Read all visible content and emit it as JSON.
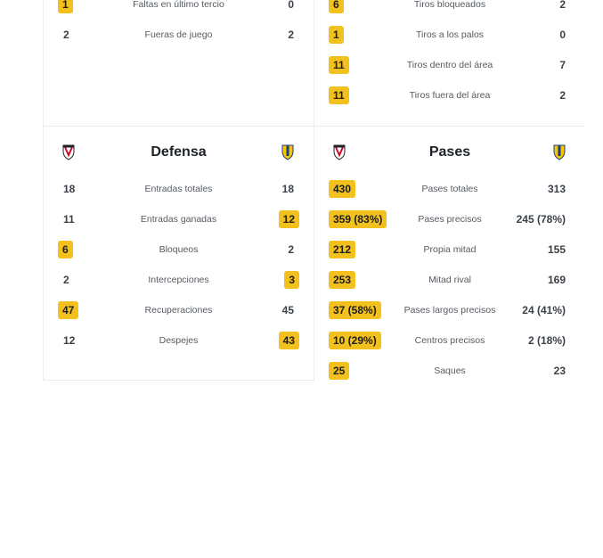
{
  "top_left": {
    "rows": [
      {
        "home": "1",
        "label": "Faltas en último tercio",
        "away": "0",
        "hl": "home"
      },
      {
        "home": "2",
        "label": "Fueras de juego",
        "away": "2",
        "hl": "none"
      }
    ]
  },
  "top_right": {
    "rows": [
      {
        "home": "6",
        "label": "Tiros bloqueados",
        "away": "2",
        "hl": "home"
      },
      {
        "home": "1",
        "label": "Tiros a los palos",
        "away": "0",
        "hl": "home"
      },
      {
        "home": "11",
        "label": "Tiros dentro del área",
        "away": "7",
        "hl": "home"
      },
      {
        "home": "11",
        "label": "Tiros fuera del área",
        "away": "2",
        "hl": "home"
      }
    ]
  },
  "defensa": {
    "title": "Defensa",
    "home_crest_icon": "mirandes-crest-icon",
    "away_crest_icon": "cadiz-crest-icon",
    "rows": [
      {
        "home": "18",
        "label": "Entradas totales",
        "away": "18",
        "hl": "none"
      },
      {
        "home": "11",
        "label": "Entradas ganadas",
        "away": "12",
        "hl": "away"
      },
      {
        "home": "6",
        "label": "Bloqueos",
        "away": "2",
        "hl": "home"
      },
      {
        "home": "2",
        "label": "Intercepciones",
        "away": "3",
        "hl": "away"
      },
      {
        "home": "47",
        "label": "Recuperaciones",
        "away": "45",
        "hl": "home"
      },
      {
        "home": "12",
        "label": "Despejes",
        "away": "43",
        "hl": "away"
      }
    ]
  },
  "pases": {
    "title": "Pases",
    "home_crest_icon": "mirandes-crest-icon",
    "away_crest_icon": "cadiz-crest-icon",
    "rows": [
      {
        "home": "430",
        "label": "Pases totales",
        "away": "313",
        "hl": "home"
      },
      {
        "home": "359 (83%)",
        "label": "Pases precisos",
        "away": "245 (78%)",
        "hl": "home"
      },
      {
        "home": "212",
        "label": "Propia mitad",
        "away": "155",
        "hl": "home"
      },
      {
        "home": "253",
        "label": "Mitad rival",
        "away": "169",
        "hl": "home"
      },
      {
        "home": "37 (58%)",
        "label": "Pases largos precisos",
        "away": "24 (41%)",
        "hl": "home"
      },
      {
        "home": "10 (29%)",
        "label": "Centros precisos",
        "away": "2 (18%)",
        "hl": "home"
      },
      {
        "home": "25",
        "label": "Saques",
        "away": "23",
        "hl": "home"
      }
    ]
  },
  "colors": {
    "highlight": "#f2c11d",
    "divider": "#ececec",
    "mirandes_red": "#c8102e",
    "cadiz_yellow": "#f6c500",
    "cadiz_blue": "#1a3d8f"
  }
}
